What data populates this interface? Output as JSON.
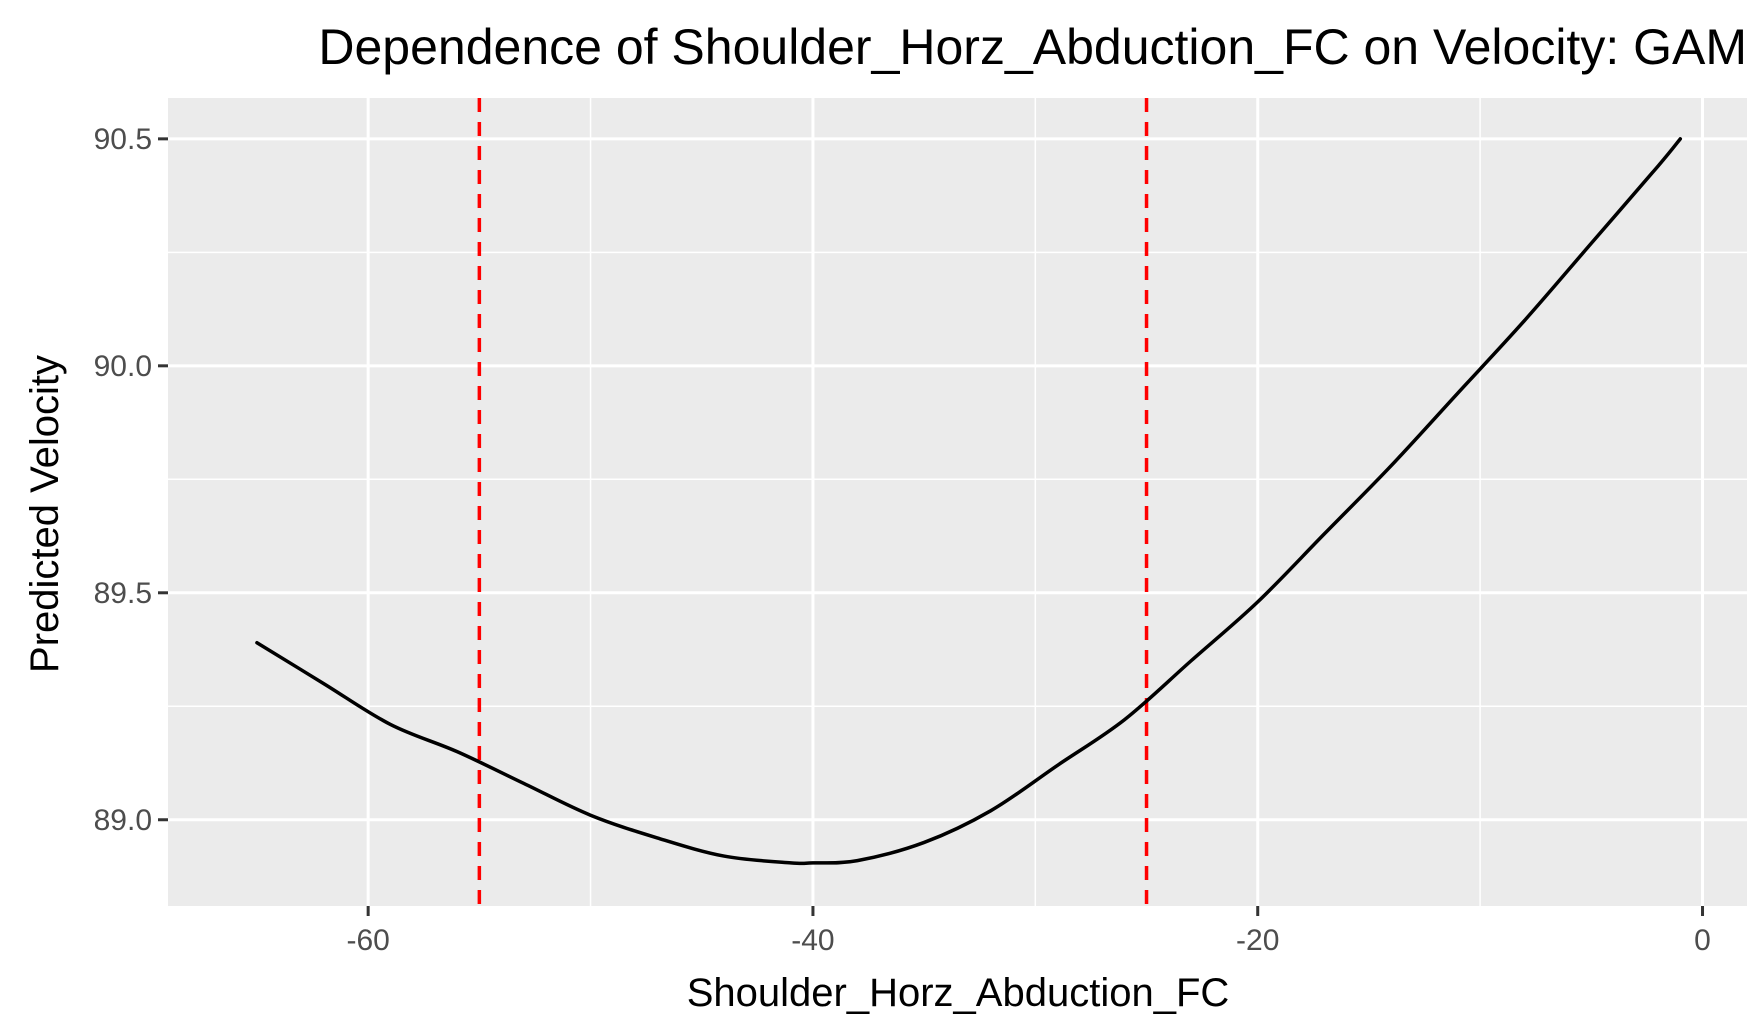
{
  "chart_data": {
    "type": "line",
    "title": "Dependence of Shoulder_Horz_Abduction_FC on Velocity: GAM",
    "xlabel": "Shoulder_Horz_Abduction_FC",
    "ylabel": "Predicted Velocity",
    "xlim": [
      -69,
      2
    ],
    "ylim": [
      88.81,
      90.59
    ],
    "x_ticks": [
      -60,
      -40,
      -20,
      0
    ],
    "x_tick_labels": [
      "-60",
      "-40",
      "-20",
      "0"
    ],
    "y_ticks": [
      89.0,
      89.5,
      90.0,
      90.5
    ],
    "y_tick_labels": [
      "89.0",
      "89.5",
      "90.0",
      "90.5"
    ],
    "grid": true,
    "background": "#ebebeb",
    "series": [
      {
        "color": "#000000",
        "x": [
          -65,
          -62,
          -59,
          -56,
          -53,
          -50,
          -47,
          -44,
          -41,
          -40,
          -38,
          -35,
          -32,
          -29,
          -26,
          -23,
          -20,
          -17,
          -14,
          -11,
          -8,
          -5,
          -2,
          -1
        ],
        "y": [
          89.39,
          89.3,
          89.21,
          89.15,
          89.08,
          89.01,
          88.96,
          88.92,
          88.905,
          88.905,
          88.91,
          88.95,
          89.02,
          89.12,
          89.22,
          89.35,
          89.48,
          89.63,
          89.78,
          89.94,
          90.1,
          90.27,
          90.44,
          90.5
        ]
      }
    ],
    "reference_lines": [
      {
        "axis": "x",
        "value": -55,
        "color": "#ff0000",
        "style": "dashed"
      },
      {
        "axis": "x",
        "value": -25,
        "color": "#ff0000",
        "style": "dashed"
      }
    ]
  }
}
